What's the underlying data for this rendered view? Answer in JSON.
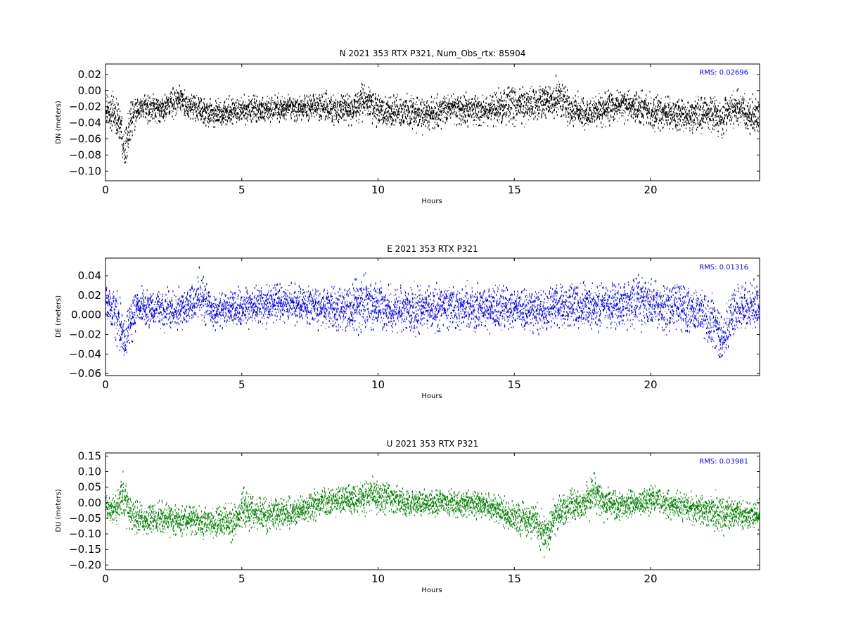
{
  "chart_data": [
    {
      "type": "scatter",
      "title": "N 2021 353 RTX  P321, Num_Obs_rtx: 85904",
      "xlabel": "Hours",
      "ylabel": "DN (meters)",
      "xlim": [
        0,
        24
      ],
      "ylim": [
        -0.112,
        0.033
      ],
      "xticks": [
        0,
        5,
        10,
        15,
        20
      ],
      "xtick_labels": [
        "0",
        "5",
        "10",
        "15",
        "20"
      ],
      "yticks": [
        0.02,
        0.0,
        -0.02,
        -0.04,
        -0.06,
        -0.08,
        -0.1
      ],
      "ytick_labels": [
        "0.02",
        "0.00",
        "−0.02",
        "−0.04",
        "−0.06",
        "−0.08",
        "−0.10"
      ],
      "annotation": "RMS:  0.02696",
      "color": "#000000",
      "series": [
        {
          "x": [
            0,
            0.3,
            0.55,
            0.7,
            0.85,
            1.2,
            2,
            2.7,
            3,
            3.6,
            4,
            5,
            6,
            7,
            8,
            9,
            9.5,
            10,
            11,
            11.7,
            12.5,
            13,
            14,
            14.8,
            15.5,
            16.3,
            16.6,
            17,
            17.6,
            18,
            19,
            19.6,
            20,
            20.8,
            21.5,
            22,
            22.6,
            23,
            23.5,
            24
          ],
          "y": [
            -0.026,
            -0.028,
            -0.04,
            -0.072,
            -0.045,
            -0.022,
            -0.024,
            -0.012,
            -0.018,
            -0.026,
            -0.028,
            -0.025,
            -0.023,
            -0.022,
            -0.02,
            -0.024,
            -0.012,
            -0.024,
            -0.026,
            -0.032,
            -0.024,
            -0.022,
            -0.025,
            -0.018,
            -0.02,
            -0.013,
            -0.008,
            -0.022,
            -0.028,
            -0.026,
            -0.016,
            -0.022,
            -0.026,
            -0.03,
            -0.032,
            -0.028,
            -0.034,
            -0.022,
            -0.026,
            -0.034
          ],
          "spread": [
            0.016,
            0.018,
            0.02,
            0.02,
            0.02,
            0.012,
            0.013,
            0.017,
            0.014,
            0.013,
            0.013,
            0.013,
            0.013,
            0.013,
            0.013,
            0.015,
            0.017,
            0.016,
            0.015,
            0.016,
            0.015,
            0.015,
            0.016,
            0.018,
            0.017,
            0.018,
            0.018,
            0.016,
            0.014,
            0.015,
            0.016,
            0.016,
            0.016,
            0.017,
            0.018,
            0.018,
            0.018,
            0.018,
            0.017,
            0.018
          ]
        }
      ]
    },
    {
      "type": "scatter",
      "title": "E 2021 353 RTX  P321",
      "xlabel": "Hours",
      "ylabel": "DE (meters)",
      "xlim": [
        0,
        24
      ],
      "ylim": [
        -0.062,
        0.058
      ],
      "xticks": [
        0,
        5,
        10,
        15,
        20
      ],
      "xtick_labels": [
        "0",
        "5",
        "10",
        "15",
        "20"
      ],
      "yticks": [
        0.04,
        0.02,
        0.0,
        -0.02,
        -0.04,
        -0.06
      ],
      "ytick_labels": [
        "0.04",
        "0.02",
        "0.000",
        "−0.02",
        "−0.04",
        "−0.06"
      ],
      "annotation": "RMS:  0.01316",
      "color": "#0000ff",
      "series": [
        {
          "x": [
            0,
            0.3,
            0.6,
            0.7,
            0.9,
            1.2,
            2,
            2.6,
            3,
            3.5,
            3.8,
            4,
            5,
            6,
            7,
            8,
            9,
            9.4,
            10,
            11,
            12,
            13,
            14,
            15,
            16,
            17,
            18,
            19,
            19.5,
            20,
            21,
            21.8,
            22.3,
            22.7,
            23,
            23.5,
            24
          ],
          "y": [
            0.008,
            0.006,
            -0.015,
            -0.03,
            -0.005,
            0.01,
            0.004,
            0.006,
            0.01,
            0.018,
            0.01,
            0.004,
            0.008,
            0.01,
            0.012,
            0.008,
            0.004,
            0.012,
            0.006,
            0.006,
            0.006,
            0.008,
            0.006,
            0.006,
            0.006,
            0.01,
            0.008,
            0.01,
            0.016,
            0.01,
            0.008,
            0.004,
            -0.01,
            -0.025,
            0.004,
            0.008,
            0.01
          ],
          "spread": [
            0.016,
            0.018,
            0.022,
            0.022,
            0.02,
            0.016,
            0.014,
            0.016,
            0.016,
            0.02,
            0.016,
            0.014,
            0.015,
            0.015,
            0.015,
            0.016,
            0.02,
            0.022,
            0.02,
            0.018,
            0.018,
            0.018,
            0.018,
            0.018,
            0.018,
            0.018,
            0.018,
            0.02,
            0.022,
            0.02,
            0.018,
            0.02,
            0.022,
            0.024,
            0.02,
            0.018,
            0.018
          ]
        }
      ]
    },
    {
      "type": "scatter",
      "title": "U 2021 353 RTX  P321",
      "xlabel": "Hours",
      "ylabel": "DU (meters)",
      "xlim": [
        0,
        24
      ],
      "ylim": [
        -0.215,
        0.16
      ],
      "xticks": [
        0,
        5,
        10,
        15,
        20
      ],
      "xtick_labels": [
        "0",
        "5",
        "10",
        "15",
        "20"
      ],
      "yticks": [
        0.15,
        0.1,
        0.05,
        0.0,
        -0.05,
        -0.1,
        -0.15,
        -0.2
      ],
      "ytick_labels": [
        "0.15",
        "0.10",
        "0.05",
        "0.00",
        "−0.05",
        "−0.10",
        "−0.15",
        "−0.20"
      ],
      "annotation": "RMS:  0.03981",
      "color": "#008000",
      "series": [
        {
          "x": [
            0,
            0.4,
            0.65,
            0.9,
            1.5,
            2,
            3,
            4,
            4.7,
            5,
            6,
            7,
            8,
            9,
            10,
            11,
            12,
            13,
            14,
            15,
            15.8,
            16.2,
            16.5,
            17,
            17.5,
            17.9,
            18.3,
            19,
            20,
            21,
            22,
            22.7,
            23,
            24
          ],
          "y": [
            -0.015,
            -0.02,
            0.03,
            -0.04,
            -0.06,
            -0.05,
            -0.055,
            -0.065,
            -0.06,
            -0.02,
            -0.04,
            -0.03,
            0.005,
            0.01,
            0.025,
            -0.005,
            0.0,
            0.0,
            -0.01,
            -0.05,
            -0.06,
            -0.11,
            -0.04,
            -0.01,
            -0.005,
            0.03,
            0.0,
            -0.01,
            0.01,
            -0.01,
            -0.025,
            -0.04,
            -0.035,
            -0.04
          ],
          "spread": [
            0.035,
            0.035,
            0.06,
            0.045,
            0.04,
            0.04,
            0.038,
            0.04,
            0.05,
            0.05,
            0.04,
            0.038,
            0.035,
            0.035,
            0.04,
            0.035,
            0.035,
            0.035,
            0.035,
            0.04,
            0.045,
            0.05,
            0.045,
            0.04,
            0.04,
            0.055,
            0.04,
            0.035,
            0.035,
            0.035,
            0.04,
            0.05,
            0.04,
            0.035
          ]
        }
      ]
    }
  ]
}
